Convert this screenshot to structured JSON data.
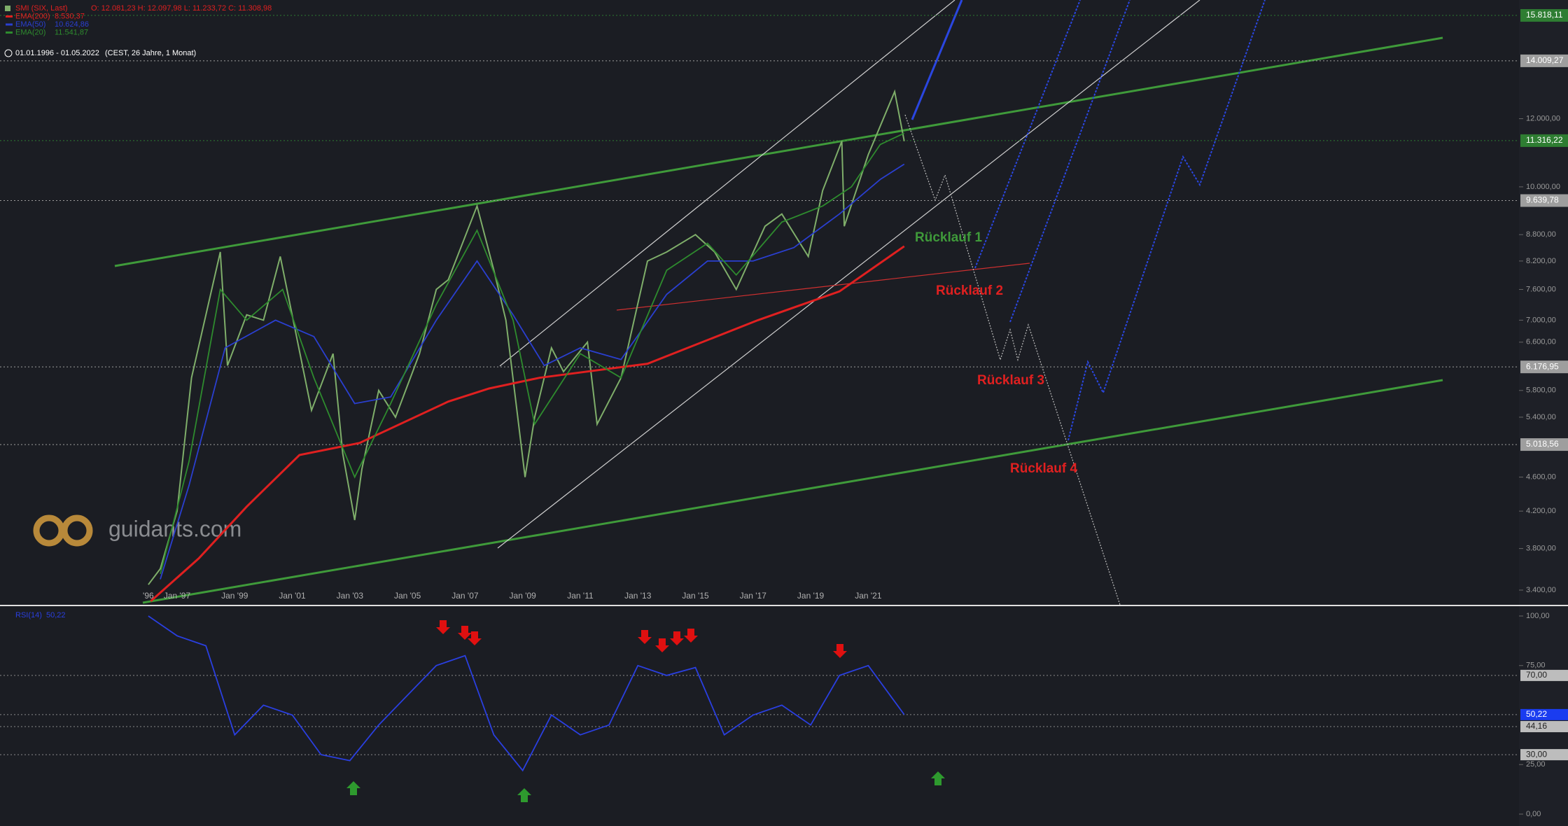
{
  "header": {
    "instrument": "SMI (SIX, Last)",
    "ohlc": "O: 12.081,23  H: 12.097,98  L: 11.233,72  C: 11.308,98",
    "range": "01.01.1996 - 01.05.2022",
    "range_info": "(CEST, 26 Jahre, 1 Monat)"
  },
  "logo": "guidants.com",
  "annotations": [
    "Rücklauf 1",
    "Rücklauf 2",
    "Rücklauf 3",
    "Rücklauf 4"
  ],
  "chart_data": [
    {
      "type": "line",
      "log_scale": true,
      "xticks": [
        "'96",
        "Jan '97",
        "Jan '99",
        "Jan '01",
        "Jan '03",
        "Jan '05",
        "Jan '07",
        "Jan '09",
        "Jan '11",
        "Jan '13",
        "Jan '15",
        "Jan '17",
        "Jan '19",
        "Jan '21"
      ],
      "xtick_dates": [
        "1996-01",
        "1997-01",
        "1999-01",
        "2001-01",
        "2003-01",
        "2005-01",
        "2007-01",
        "2009-01",
        "2011-01",
        "2013-01",
        "2015-01",
        "2017-01",
        "2019-01",
        "2021-01"
      ],
      "ylim": [
        3300,
        16500
      ],
      "yticks": [
        {
          "value": 3400,
          "label": "3.400,00"
        },
        {
          "value": 3800,
          "label": "3.800,00"
        },
        {
          "value": 4200,
          "label": "4.200,00"
        },
        {
          "value": 4600,
          "label": "4.600,00"
        },
        {
          "value": 5400,
          "label": "5.400,00"
        },
        {
          "value": 5800,
          "label": "5.800,00"
        },
        {
          "value": 6600,
          "label": "6.600,00"
        },
        {
          "value": 7000,
          "label": "7.000,00"
        },
        {
          "value": 7600,
          "label": "7.600,00"
        },
        {
          "value": 8200,
          "label": "8.200,00"
        },
        {
          "value": 8800,
          "label": "8.800,00"
        },
        {
          "value": 10000,
          "label": "10.000,00"
        },
        {
          "value": 12000,
          "label": "12.000,00"
        }
      ],
      "price_markers": [
        {
          "value": 15818.11,
          "label": "15.818,11",
          "color": "#2e7d32"
        },
        {
          "value": 14009.27,
          "label": "14.009,27",
          "color": "#9e9e9e"
        },
        {
          "value": 11316.22,
          "label": "11.316,22",
          "color": "#2e7d32"
        },
        {
          "value": 9639.78,
          "label": "9.639,78",
          "color": "#9e9e9e"
        },
        {
          "value": 6176.95,
          "label": "6.176,95",
          "color": "#9e9e9e"
        },
        {
          "value": 5018.56,
          "label": "5.018,56",
          "color": "#9e9e9e"
        }
      ],
      "series": [
        {
          "name": "SMI (SIX, Last)",
          "color": "#7fae6a",
          "x": [
            "1996-01",
            "1996-06",
            "1997-01",
            "1997-07",
            "1998-07",
            "1998-10",
            "1999-06",
            "2000-01",
            "2000-08",
            "2001-09",
            "2002-06",
            "2002-10",
            "2003-03",
            "2003-06",
            "2004-01",
            "2004-08",
            "2005-06",
            "2006-01",
            "2006-06",
            "2007-06",
            "2008-01",
            "2008-06",
            "2009-02",
            "2009-06",
            "2010-01",
            "2010-06",
            "2011-04",
            "2011-08",
            "2012-06",
            "2013-05",
            "2014-01",
            "2015-01",
            "2015-09",
            "2016-06",
            "2017-06",
            "2018-01",
            "2018-12",
            "2019-06",
            "2020-02",
            "2020-03",
            "2021-01",
            "2021-12",
            "2022-04"
          ],
          "values": [
            3450,
            3600,
            4200,
            6000,
            8400,
            6200,
            7100,
            7000,
            8300,
            5500,
            6400,
            4900,
            4100,
            4700,
            5800,
            5400,
            6400,
            7600,
            7800,
            9500,
            8000,
            7000,
            4600,
            5400,
            6500,
            6100,
            6600,
            5300,
            6000,
            8200,
            8400,
            8800,
            8400,
            7600,
            9000,
            9300,
            8300,
            9900,
            11300,
            9000,
            10900,
            12900,
            11300
          ]
        },
        {
          "name": "EMA(200)",
          "color": "#e02020",
          "value_label": "8.530,37",
          "x": [
            "1996-02",
            "1997-10",
            "1999-06",
            "2001-04",
            "2003-05",
            "2006-06",
            "2007-11",
            "2009-08",
            "2013-05",
            "2017-03",
            "2020-01",
            "2022-04"
          ],
          "values": [
            3300,
            3700,
            4250,
            4880,
            5040,
            5630,
            5830,
            6000,
            6230,
            7000,
            7560,
            8530
          ]
        },
        {
          "name": "EMA(50)",
          "color": "#2a3fd0",
          "value_label": "10.624,86",
          "x": [
            "1996-06",
            "1997-06",
            "1998-09",
            "2000-06",
            "2001-10",
            "2003-03",
            "2004-06",
            "2006-01",
            "2007-06",
            "2008-09",
            "2009-10",
            "2011-01",
            "2012-06",
            "2014-01",
            "2015-06",
            "2017-01",
            "2018-06",
            "2020-01",
            "2021-06",
            "2022-04"
          ],
          "values": [
            3500,
            4500,
            6500,
            7000,
            6700,
            5600,
            5700,
            7000,
            8200,
            7100,
            6200,
            6500,
            6300,
            7500,
            8200,
            8200,
            8500,
            9300,
            10200,
            10625
          ]
        },
        {
          "name": "EMA(20)",
          "color": "#2e8b2e",
          "value_label": "11.541,87",
          "x": [
            "1996-06",
            "1997-06",
            "1998-07",
            "1999-06",
            "2000-09",
            "2001-10",
            "2003-03",
            "2004-06",
            "2006-01",
            "2007-06",
            "2008-09",
            "2009-06",
            "2011-01",
            "2012-06",
            "2014-01",
            "2015-06",
            "2016-06",
            "2018-01",
            "2019-06",
            "2020-06",
            "2021-06",
            "2022-04"
          ],
          "values": [
            3550,
            4800,
            7600,
            7000,
            7600,
            6000,
            4600,
            5600,
            7300,
            8900,
            7000,
            5300,
            6400,
            6000,
            8000,
            8600,
            7900,
            9100,
            9500,
            10000,
            11200,
            11542
          ]
        }
      ]
    },
    {
      "type": "line",
      "ylim": [
        0,
        100
      ],
      "yticks": [
        {
          "value": 100,
          "label": "100,00"
        },
        {
          "value": 75,
          "label": "75,00"
        },
        {
          "value": 25,
          "label": "25,00"
        },
        {
          "value": 0,
          "label": "0,00"
        }
      ],
      "levels": [
        {
          "value": 70,
          "label": "70,00",
          "color": "#bdbdbd"
        },
        {
          "value": 50.22,
          "label": "50,22",
          "color": "#1a3cf0"
        },
        {
          "value": 44.16,
          "label": "44,16",
          "color": "#bdbdbd"
        },
        {
          "value": 30,
          "label": "30,00",
          "color": "#bdbdbd"
        }
      ],
      "series": [
        {
          "name": "RSI(14)",
          "color": "#2a3fe0",
          "value_label": "50,22",
          "x": [
            "1996-01",
            "1997-01",
            "1998-01",
            "1999-01",
            "2000-01",
            "2001-01",
            "2002-01",
            "2003-01",
            "2004-01",
            "2005-01",
            "2006-01",
            "2007-01",
            "2008-01",
            "2009-01",
            "2010-01",
            "2011-01",
            "2012-01",
            "2013-01",
            "2014-01",
            "2015-01",
            "2016-01",
            "2017-01",
            "2018-01",
            "2019-01",
            "2020-01",
            "2021-01",
            "2022-04"
          ],
          "values": [
            100,
            90,
            85,
            40,
            55,
            50,
            30,
            27,
            45,
            60,
            75,
            80,
            40,
            22,
            50,
            40,
            45,
            75,
            70,
            74,
            40,
            50,
            55,
            45,
            70,
            75,
            50.22
          ]
        }
      ]
    }
  ]
}
